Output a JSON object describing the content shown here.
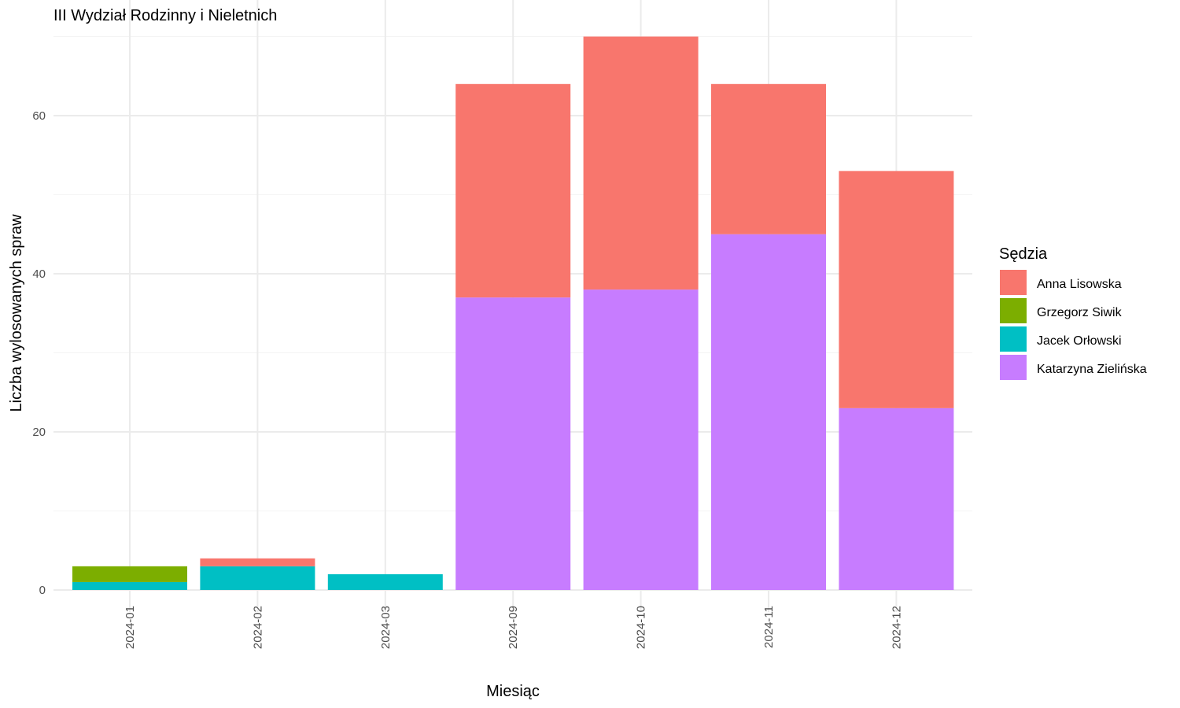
{
  "chart_data": {
    "type": "bar",
    "stacked": true,
    "title": "III Wydział Rodzinny i Nieletnich",
    "xlabel": "Miesiąc",
    "ylabel": "Liczba wylosowanych spraw",
    "ylim": [
      0,
      72
    ],
    "yticks": [
      0,
      20,
      40,
      60
    ],
    "grid": true,
    "legend": {
      "title": "Sędzia",
      "position": "right"
    },
    "categories": [
      "2024-01",
      "2024-02",
      "2024-03",
      "2024-09",
      "2024-10",
      "2024-11",
      "2024-12"
    ],
    "stack_order": [
      "Katarzyna Zielińska",
      "Jacek Orłowski",
      "Grzegorz Siwik",
      "Anna Lisowska"
    ],
    "series": [
      {
        "name": "Anna Lisowska",
        "color": "#F8766D",
        "values": [
          0,
          1,
          0,
          27,
          32,
          19,
          30
        ]
      },
      {
        "name": "Grzegorz Siwik",
        "color": "#7CAE00",
        "values": [
          2,
          0,
          0,
          0,
          0,
          0,
          0
        ]
      },
      {
        "name": "Jacek Orłowski",
        "color": "#00BFC4",
        "values": [
          1,
          3,
          2,
          0,
          0,
          0,
          0
        ]
      },
      {
        "name": "Katarzyna Zielińska",
        "color": "#C77CFF",
        "values": [
          0,
          0,
          0,
          37,
          38,
          45,
          23
        ]
      }
    ]
  }
}
